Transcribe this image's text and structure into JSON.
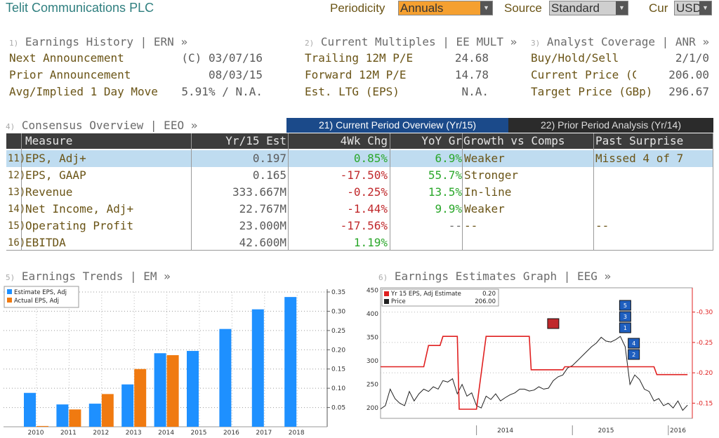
{
  "header": {
    "company": "Telit Communications PLC",
    "periodicity_label": "Periodicity",
    "periodicity_value": "Annuals",
    "source_label": "Source",
    "source_value": "Standard",
    "cur_label": "Cur",
    "cur_value": "USD"
  },
  "earnings_history": {
    "num": "1)",
    "title": "Earnings History | ERN »",
    "rows": [
      {
        "label": "Next Announcement",
        "value": "(C) 03/07/16"
      },
      {
        "label": "Prior Announcement",
        "value": "08/03/15"
      },
      {
        "label": "Avg/Implied 1 Day Move",
        "value": "5.91% / N.A."
      }
    ]
  },
  "current_multiples": {
    "num": "2)",
    "title": "Current Multiples | EE MULT »",
    "rows": [
      {
        "label": "Trailing 12M P/E",
        "value": "24.68"
      },
      {
        "label": "Forward 12M P/E",
        "value": "14.78"
      },
      {
        "label": "Est. LTG (EPS)",
        "value": "N.A."
      }
    ]
  },
  "analyst_coverage": {
    "num": "3)",
    "title": "Analyst Coverage | ANR »",
    "rows": [
      {
        "label": "Buy/Hold/Sell",
        "value": "2/1/0"
      },
      {
        "label": "Current Price (GBp",
        "value": "206.00"
      },
      {
        "label": "Target Price (GBp)",
        "value": "296.67"
      }
    ]
  },
  "consensus": {
    "num": "4)",
    "title": "Consensus Overview | EEO »",
    "tab_current": "21) Current Period Overview (Yr/15)",
    "tab_prior": "22) Prior Period Analysis (Yr/14)",
    "columns": [
      "Measure",
      "Yr/15 Est",
      "4Wk Chg",
      "YoY Gr",
      "Growth vs Comps",
      "Past Surprise"
    ],
    "rows": [
      {
        "num": "11)",
        "measure": "EPS, Adj+",
        "est": "0.197",
        "chg": "0.85%",
        "chg_dir": "up",
        "yoy": "6.9%",
        "yoy_dir": "up",
        "comps": "Weaker",
        "surprise": "Missed 4 of 7"
      },
      {
        "num": "12)",
        "measure": "EPS, GAAP",
        "est": "0.165",
        "chg": "-17.50%",
        "chg_dir": "down",
        "yoy": "55.7%",
        "yoy_dir": "up",
        "comps": "Stronger",
        "surprise": ""
      },
      {
        "num": "13)",
        "measure": "Revenue",
        "est": "333.667M",
        "chg": "-0.25%",
        "chg_dir": "down",
        "yoy": "13.5%",
        "yoy_dir": "up",
        "comps": "In-line",
        "surprise": ""
      },
      {
        "num": "14)",
        "measure": "Net Income, Adj+",
        "est": "22.767M",
        "chg": "-1.44%",
        "chg_dir": "down",
        "yoy": "9.9%",
        "yoy_dir": "up",
        "comps": "Weaker",
        "surprise": ""
      },
      {
        "num": "15)",
        "measure": "Operating Profit",
        "est": "23.000M",
        "chg": "-17.56%",
        "chg_dir": "down",
        "yoy": "--",
        "yoy_dir": "none",
        "comps": "--",
        "surprise": "--"
      },
      {
        "num": "16)",
        "measure": "EBITDA",
        "est": "42.600M",
        "chg": "1.19%",
        "chg_dir": "up",
        "yoy": "",
        "yoy_dir": "none",
        "comps": "",
        "surprise": ""
      }
    ]
  },
  "earnings_trends": {
    "num": "5)",
    "title": "Earnings Trends | EM »"
  },
  "earnings_graph": {
    "num": "6)",
    "title": "Earnings Estimates Graph | EEG »",
    "legend_est_value": "0.20",
    "legend_price_value": "206.00"
  },
  "colors": {
    "estimate": "#1e90ff",
    "actual": "#f07a10",
    "price": "#222222",
    "est_line": "#e02020",
    "tab_active": "#1b4a8a"
  },
  "chart_data": [
    {
      "type": "bar",
      "categories": [
        "2010",
        "2011",
        "2012",
        "2013",
        "2014",
        "2015",
        "2016",
        "2017",
        "2018"
      ],
      "series": [
        {
          "name": "Estimate EPS, Adj",
          "values": [
            0.088,
            0.058,
            0.06,
            0.11,
            0.191,
            0.197,
            0.254,
            0.305,
            0.337
          ]
        },
        {
          "name": "Actual EPS, Adj",
          "values": [
            0.002,
            0.045,
            0.085,
            0.15,
            0.186,
            null,
            null,
            null,
            null
          ]
        }
      ],
      "ylim": [
        0,
        0.35
      ],
      "yticks": [
        "0.05",
        "0.10",
        "0.15",
        "0.20",
        "0.25",
        "0.30",
        "0.35"
      ],
      "grid": true,
      "legend": "top-left"
    },
    {
      "type": "line",
      "xlabel_ticks": [
        "2014",
        "2015",
        "2016"
      ],
      "left_ticks": [
        "200",
        "250",
        "300",
        "350",
        "400",
        "450"
      ],
      "right_ticks": [
        "0.15",
        "0.20",
        "0.25",
        "0.30"
      ],
      "left_range": [
        178,
        455
      ],
      "right_range": [
        0.125,
        0.34
      ],
      "series": [
        {
          "name": "Yr 15 EPS, Adj Estimate",
          "axis": "right",
          "x": [
            2013.0,
            2013.45,
            2013.5,
            2013.62,
            2013.65,
            2013.8,
            2013.82,
            2014.0,
            2014.1,
            2014.55,
            2014.57,
            2014.9,
            2014.92,
            2015.3,
            2015.32,
            2015.4,
            2015.42,
            2015.85,
            2015.88,
            2016.2
          ],
          "values": [
            0.21,
            0.21,
            0.245,
            0.245,
            0.26,
            0.26,
            0.14,
            0.14,
            0.26,
            0.26,
            0.205,
            0.205,
            0.21,
            0.21,
            0.21,
            0.21,
            0.21,
            0.21,
            0.197,
            0.197
          ]
        },
        {
          "name": "Price",
          "axis": "left",
          "x": [
            2013.0,
            2013.05,
            2013.1,
            2013.15,
            2013.2,
            2013.25,
            2013.3,
            2013.35,
            2013.4,
            2013.45,
            2013.5,
            2013.55,
            2013.6,
            2013.65,
            2013.7,
            2013.75,
            2013.8,
            2013.85,
            2013.9,
            2013.95,
            2014.0,
            2014.05,
            2014.1,
            2014.15,
            2014.2,
            2014.25,
            2014.3,
            2014.35,
            2014.4,
            2014.45,
            2014.5,
            2014.55,
            2014.6,
            2014.65,
            2014.7,
            2014.75,
            2014.8,
            2014.85,
            2014.9,
            2014.95,
            2015.0,
            2015.05,
            2015.1,
            2015.15,
            2015.2,
            2015.25,
            2015.3,
            2015.35,
            2015.4,
            2015.45,
            2015.5,
            2015.55,
            2015.6,
            2015.65,
            2015.7,
            2015.75,
            2015.8,
            2015.85,
            2015.9,
            2015.95,
            2016.0,
            2016.05,
            2016.1,
            2016.15,
            2016.2
          ],
          "values": [
            198,
            205,
            240,
            220,
            210,
            205,
            235,
            215,
            230,
            240,
            235,
            245,
            240,
            258,
            255,
            262,
            230,
            250,
            225,
            232,
            205,
            200,
            225,
            218,
            230,
            215,
            222,
            228,
            232,
            240,
            240,
            236,
            238,
            245,
            240,
            242,
            258,
            266,
            270,
            285,
            290,
            300,
            310,
            320,
            330,
            338,
            350,
            342,
            340,
            345,
            352,
            330,
            250,
            270,
            260,
            240,
            235,
            215,
            220,
            205,
            210,
            200,
            215,
            195,
            206
          ]
        }
      ],
      "markers": [
        {
          "label": "",
          "color": "#c0282b",
          "x": 2014.8
        },
        {
          "label": "5",
          "color": "#1f5fbf",
          "x": 2015.55
        },
        {
          "label": "3",
          "color": "#1f5fbf",
          "x": 2015.55
        },
        {
          "label": "1",
          "color": "#1f5fbf",
          "x": 2015.55
        },
        {
          "label": "4",
          "color": "#1f5fbf",
          "x": 2015.64
        },
        {
          "label": "2",
          "color": "#1f5fbf",
          "x": 2015.64
        }
      ],
      "legend": "top-left"
    }
  ]
}
